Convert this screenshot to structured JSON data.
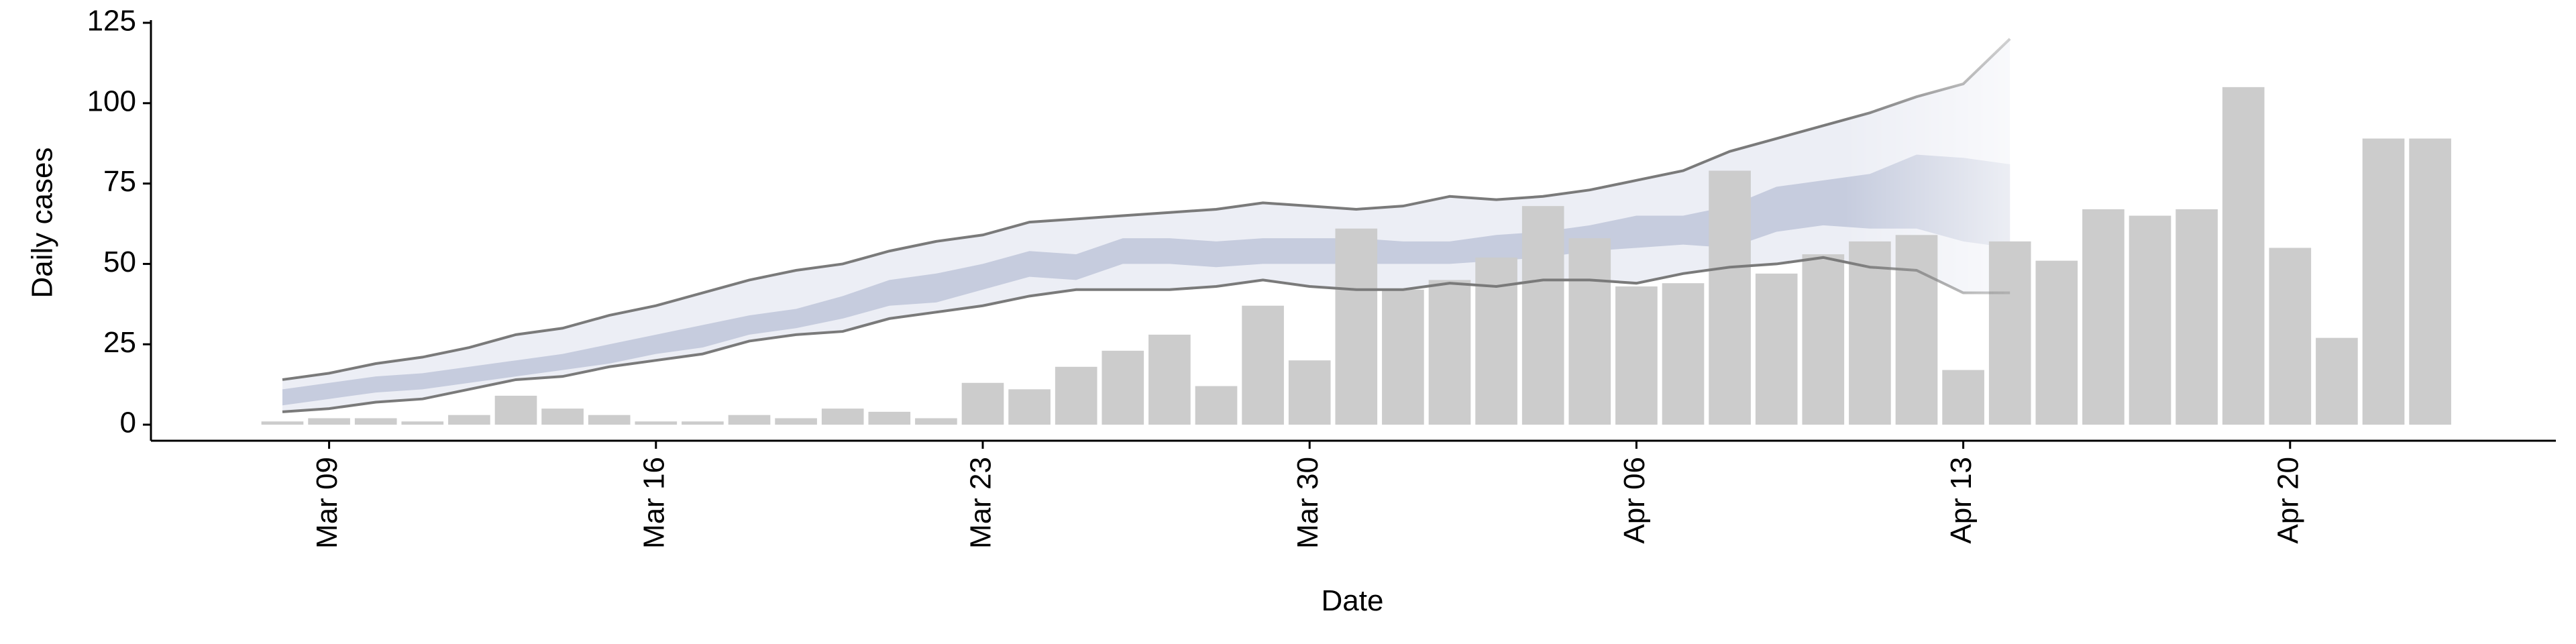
{
  "chart_data": {
    "type": "bar",
    "y_label": "Daily cases",
    "x_label": "Date",
    "categories": [
      null,
      "Mar 09",
      null,
      null,
      null,
      null,
      null,
      null,
      "Mar 16",
      null,
      null,
      null,
      null,
      null,
      null,
      "Mar 23",
      null,
      null,
      null,
      null,
      null,
      null,
      "Mar 30",
      null,
      null,
      null,
      null,
      null,
      null,
      "Apr 06",
      null,
      null,
      null,
      null,
      null,
      null,
      "Apr 13",
      null,
      null,
      null,
      null,
      null,
      null,
      "Apr 20",
      null,
      null,
      null
    ],
    "values": [
      1,
      2,
      2,
      1,
      3,
      9,
      5,
      3,
      1,
      1,
      3,
      2,
      5,
      4,
      2,
      13,
      11,
      18,
      23,
      28,
      12,
      37,
      20,
      61,
      42,
      45,
      52,
      68,
      58,
      43,
      44,
      79,
      47,
      53,
      57,
      59,
      17,
      57,
      51,
      67,
      65,
      67,
      105,
      55,
      27,
      89,
      89
    ],
    "color": "#cccccc",
    "outer_high": [
      14,
      16,
      19,
      21,
      24,
      28,
      30,
      34,
      37,
      41,
      45,
      48,
      50,
      54,
      57,
      59,
      63,
      64,
      65,
      66,
      67,
      69,
      68,
      67,
      68,
      71,
      70,
      71,
      73,
      76,
      79,
      85,
      89,
      93,
      97,
      102,
      106,
      120,
      null,
      null,
      null,
      null,
      null,
      null,
      null,
      null,
      null
    ],
    "outer_low": [
      4,
      5,
      7,
      8,
      11,
      14,
      15,
      18,
      20,
      22,
      26,
      28,
      29,
      33,
      35,
      37,
      40,
      42,
      42,
      42,
      43,
      45,
      43,
      42,
      42,
      44,
      43,
      45,
      45,
      44,
      47,
      49,
      50,
      52,
      49,
      48,
      41,
      41,
      null,
      null,
      null,
      null,
      null,
      null,
      null,
      null,
      null
    ],
    "inner_high": [
      11,
      13,
      15,
      16,
      18,
      20,
      22,
      25,
      28,
      31,
      34,
      36,
      40,
      45,
      47,
      50,
      54,
      53,
      58,
      58,
      57,
      58,
      58,
      58,
      57,
      57,
      59,
      60,
      62,
      65,
      65,
      68,
      74,
      76,
      78,
      84,
      83,
      81,
      null,
      null,
      null,
      null,
      null,
      null,
      null,
      null,
      null
    ],
    "inner_low": [
      6,
      8,
      10,
      11,
      13,
      15,
      17,
      19,
      22,
      24,
      28,
      30,
      33,
      37,
      38,
      42,
      46,
      45,
      50,
      50,
      49,
      50,
      50,
      50,
      50,
      50,
      51,
      52,
      54,
      55,
      56,
      55,
      60,
      62,
      61,
      61,
      57,
      55,
      null,
      null,
      null,
      null,
      null,
      null,
      null,
      null,
      null
    ],
    "outer_color": "#eceef5",
    "inner_color": "#c6ccde",
    "line_color": "#7a7a7a",
    "ylim": [
      -5,
      125
    ],
    "yticks": [
      0,
      25,
      50,
      75,
      100,
      125
    ],
    "grid": false
  }
}
